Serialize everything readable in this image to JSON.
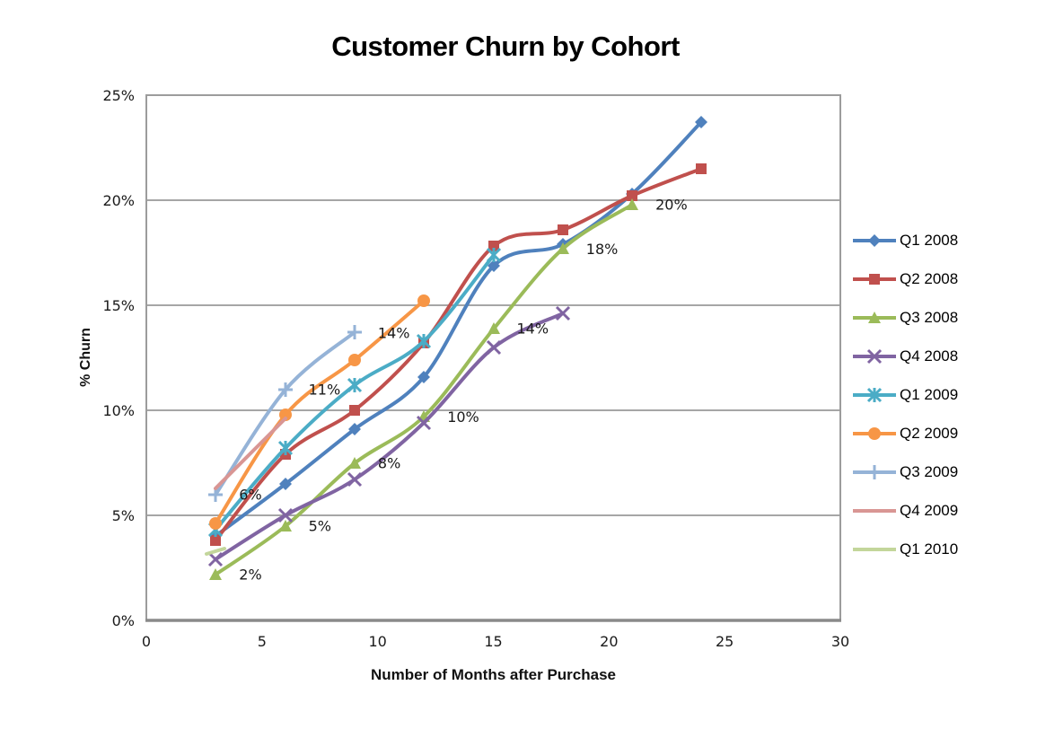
{
  "chart_data": {
    "type": "line",
    "title": "Customer Churn by Cohort",
    "xlabel": "Number of Months after Purchase",
    "ylabel": "% Churn",
    "xlim": [
      0,
      30
    ],
    "ylim": [
      0,
      25
    ],
    "x_ticks": [
      "0",
      "5",
      "10",
      "15",
      "20",
      "25",
      "30"
    ],
    "x_tick_values": [
      0,
      5,
      10,
      15,
      20,
      25,
      30
    ],
    "y_tick_labels": [
      "0%",
      "5%",
      "10%",
      "15%",
      "20%",
      "25%"
    ],
    "y_tick_values": [
      0,
      5,
      10,
      15,
      20,
      25
    ],
    "grid": "horizontal",
    "legend_position": "right",
    "smoothed_lines": true,
    "series": [
      {
        "name": "Q1 2008",
        "color": "#4F81BD",
        "marker": "diamond",
        "x": [
          3,
          6,
          9,
          12,
          15,
          18,
          21,
          24
        ],
        "values": [
          4.0,
          6.5,
          9.1,
          11.6,
          16.9,
          17.9,
          20.3,
          23.7
        ],
        "labels": []
      },
      {
        "name": "Q2 2008",
        "color": "#C0504D",
        "marker": "square",
        "x": [
          3,
          6,
          9,
          12,
          15,
          18,
          21,
          24
        ],
        "values": [
          3.8,
          7.9,
          10.0,
          13.2,
          17.8,
          18.6,
          20.2,
          21.5
        ],
        "labels": []
      },
      {
        "name": "Q3 2008",
        "color": "#9BBB59",
        "marker": "triangle",
        "x": [
          3,
          6,
          9,
          12,
          15,
          18,
          21
        ],
        "values": [
          2.2,
          4.5,
          7.5,
          9.7,
          13.9,
          17.7,
          19.8
        ],
        "labels": [
          "2%",
          "5%",
          "8%",
          "10%",
          "14%",
          "18%",
          "20%"
        ]
      },
      {
        "name": "Q4 2008",
        "color": "#8064A2",
        "marker": "x",
        "x": [
          3,
          6,
          9,
          12,
          15,
          18
        ],
        "values": [
          2.9,
          5.0,
          6.7,
          9.4,
          13.0,
          14.6
        ],
        "labels": []
      },
      {
        "name": "Q1 2009",
        "color": "#4BACC6",
        "marker": "star",
        "x": [
          3,
          6,
          9,
          12,
          15
        ],
        "values": [
          4.3,
          8.2,
          11.2,
          13.3,
          17.4
        ],
        "labels": []
      },
      {
        "name": "Q2 2009",
        "color": "#F79646",
        "marker": "circle",
        "x": [
          3,
          6,
          9,
          12
        ],
        "values": [
          4.6,
          9.8,
          12.4,
          15.2
        ],
        "labels": []
      },
      {
        "name": "Q3 2009",
        "color": "#95B3D7",
        "marker": "plus",
        "x": [
          3,
          6,
          9
        ],
        "values": [
          6.0,
          11.0,
          13.7
        ],
        "labels": [
          "6%",
          "11%",
          "14%"
        ]
      },
      {
        "name": "Q4 2009",
        "color": "#D99694",
        "marker": "none",
        "x": [
          3,
          6
        ],
        "values": [
          6.3,
          9.6
        ],
        "labels": []
      },
      {
        "name": "Q1 2010",
        "color": "#C3D69B",
        "marker": "none",
        "x": [
          3
        ],
        "values": [
          3.3
        ],
        "labels": []
      }
    ],
    "style": {
      "gridline_color": "#A6A6A6",
      "border_color": "#9C9C9C",
      "axis_color": "#8A8A8A",
      "tick_label_color": "#1a1a1a",
      "data_label_color": "#1a1a1a"
    }
  }
}
